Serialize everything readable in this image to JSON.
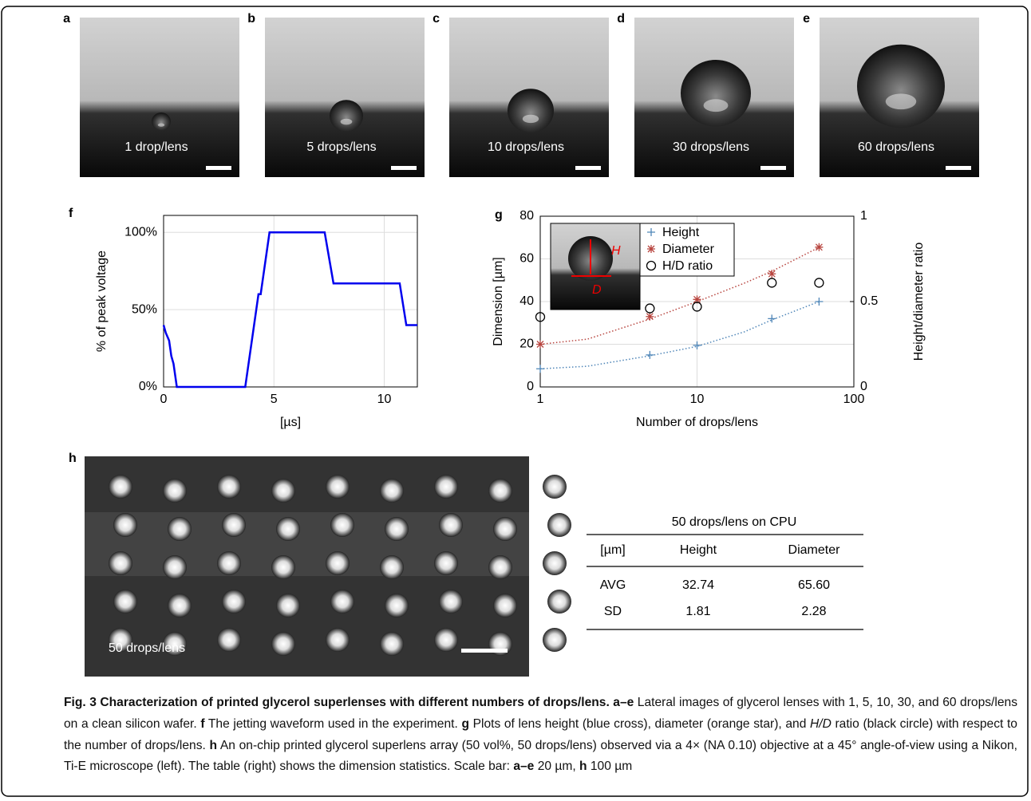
{
  "image_panels": [
    {
      "label": "a",
      "caption": "1 drop/lens"
    },
    {
      "label": "b",
      "caption": "5 drops/lens"
    },
    {
      "label": "c",
      "caption": "10 drops/lens"
    },
    {
      "label": "d",
      "caption": "30 drops/lens"
    },
    {
      "label": "e",
      "caption": "60 drops/lens"
    }
  ],
  "chart_data": [
    {
      "type": "line",
      "panel_label": "f",
      "xlabel": "[µs]",
      "ylabel": "% of peak voltage",
      "x": [
        0,
        0.1,
        0.25,
        0.35,
        0.45,
        0.55,
        0.6,
        3.7,
        3.8,
        3.9,
        4.1,
        4.2,
        4.3,
        4.4,
        4.8,
        7.3,
        7.7,
        10.7,
        11,
        11.5
      ],
      "values": [
        40,
        35,
        30,
        20,
        15,
        5,
        0,
        0,
        10,
        20,
        40,
        50,
        60,
        60,
        100,
        100,
        67,
        67,
        40,
        40
      ],
      "color": "#0000ee",
      "xlim": [
        0,
        11.5
      ],
      "ylim": [
        0,
        111
      ],
      "xticks": [
        0,
        5,
        10
      ],
      "yticks": [
        {
          "value": 0,
          "label": "0%"
        },
        {
          "value": 50,
          "label": "50%"
        },
        {
          "value": 100,
          "label": "100%"
        }
      ],
      "grid": true
    },
    {
      "type": "scatter",
      "panel_label": "g",
      "xlabel": "Number of drops/lens",
      "ylabel": "Dimension [µm]",
      "y2label": "Height/diameter ratio",
      "log_x": true,
      "xlim": [
        1,
        100
      ],
      "xticks": [
        1,
        10,
        100
      ],
      "ylim": [
        0,
        80
      ],
      "yticks": [
        0,
        20,
        40,
        60,
        80
      ],
      "y2lim": [
        0,
        1
      ],
      "y2ticks": [
        0,
        0.5,
        1
      ],
      "grid": true,
      "legend": "top-left",
      "inset_labels": [
        "H",
        "D"
      ],
      "series": [
        {
          "name": "Height",
          "color": "#4f86b8",
          "marker": "plus",
          "x": [
            1,
            5,
            10,
            30,
            60
          ],
          "values": [
            8.5,
            15,
            19.5,
            32,
            40
          ],
          "trend": {
            "x": [
              1,
              2,
              5,
              10,
              20,
              30,
              60
            ],
            "values": [
              8.5,
              9.7,
              14.6,
              19,
              25.8,
              31.4,
              40
            ]
          }
        },
        {
          "name": "Diameter",
          "color": "#b8453f",
          "marker": "star",
          "x": [
            1,
            5,
            10,
            30,
            60
          ],
          "values": [
            20,
            33,
            41,
            53,
            65.5
          ],
          "trend": {
            "x": [
              1,
              2,
              5,
              10,
              20,
              30,
              60
            ],
            "values": [
              20,
              22.4,
              31.8,
              40,
              48.6,
              54.2,
              65.4
            ]
          }
        },
        {
          "name": "H/D ratio",
          "color": "#000000",
          "marker": "circle",
          "axis": "y2",
          "x": [
            1,
            5,
            10,
            30,
            60
          ],
          "values": [
            0.41,
            0.46,
            0.47,
            0.61,
            0.61
          ]
        }
      ]
    }
  ],
  "panel_h": {
    "label": "h",
    "caption": "50 drops/lens"
  },
  "table": {
    "title": "50 drops/lens on CPU",
    "header": [
      "[µm]",
      "Height",
      "Diameter"
    ],
    "rows": [
      [
        "AVG",
        "32.74",
        "65.60"
      ],
      [
        "SD",
        "1.81",
        "2.28"
      ]
    ]
  },
  "caption": [
    {
      "text": "Fig. 3 Characterization of printed glycerol superlenses with different numbers of drops/lens. a–e",
      "bold": true
    },
    {
      "text": " Lateral images of glycerol lenses with 1, 5, 10, 30, and 60 drops/lens on a clean silicon wafer. "
    },
    {
      "text": "f",
      "bold": true
    },
    {
      "text": " The jetting waveform used in the experiment. "
    },
    {
      "text": "g",
      "bold": true
    },
    {
      "text": " Plots of lens height (blue cross), diameter (orange star), and "
    },
    {
      "text": "H/D",
      "italic": true
    },
    {
      "text": " ratio (black circle) with respect to the number of drops/lens. "
    },
    {
      "text": "h",
      "bold": true
    },
    {
      "text": " An on-chip printed glycerol superlens array (50 vol%, 50 drops/lens) observed via a 4× (NA 0.10) objective at a 45° angle-of-view using a Nikon, Ti-E microscope (left). The table (right) shows the dimension statistics. Scale bar: "
    },
    {
      "text": "a–e",
      "bold": true
    },
    {
      "text": " 20 µm, "
    },
    {
      "text": "h",
      "bold": true
    },
    {
      "text": " 100 µm"
    }
  ]
}
